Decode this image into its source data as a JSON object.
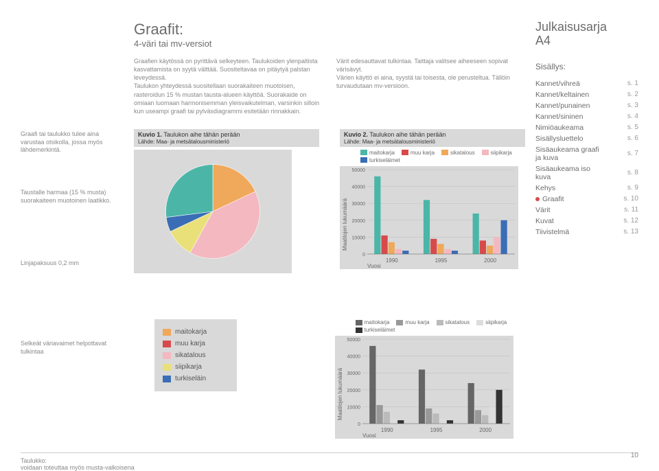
{
  "title": "Graafit:",
  "subtitle": "4-väri tai mv-versiot",
  "paragraphs": {
    "p1": "Graafien käytössä on pyrittävä selkeyteen. Taulukoiden ylenpaltista kasvattamista on syytä välttää. Suositeltavaa on pitäytyä palstan leveydessä.",
    "p2": "Taulukon yhteydessä suositellaan suorakaiteen muotoisen, rasteroidun 15 % mustan tausta-alueen käyttöä. Suorakaide on omiaan luomaan harmonisemman yleisvaikutelman, varsinkin silloin kun useampi graafi tai pylväsdiagrammi esitetään rinnakkain.",
    "p3": "Värit edesauttavat tulkintaa. Taittaja valitsee aiheeseen sopivat värisävyt.",
    "p4": "Värien käyttö ei aina, syystä tai toisesta, ole perusteltua. Tällöin turvaudutaan mv-versioon."
  },
  "left_notes": {
    "n1": "Graafi tai taulukko tulee aina varustaa otsikolla, jossa myös lähdemerkintä.",
    "n2": "Taustalle harmaa (15 % musta) suorakaiteen muotoinen laatikko.",
    "n3": "Linjapaksuus 0,2 mm",
    "n4": "Selkeät väriavaimet helpottavat tulkintaa"
  },
  "kuvio1": {
    "title_prefix": "Kuvio 1.",
    "title": "Taulukon aihe tähän perään",
    "source": "Lähde: Maa- ja metsätalousministeriö",
    "type": "pie",
    "slices": [
      {
        "label": "maitokarja",
        "value": 18,
        "color": "#f0a85a"
      },
      {
        "label": "muu karja",
        "value": 40,
        "color": "#f4b8c0"
      },
      {
        "label": "sikatalous",
        "value": 10,
        "color": "#e9e07a"
      },
      {
        "label": "siipikarja",
        "value": 5,
        "color": "#3a6db5"
      },
      {
        "label": "turkiseläin",
        "value": 27,
        "color": "#4bb6a8"
      }
    ],
    "background_color": "#d9d9d9"
  },
  "kuvio2": {
    "title_prefix": "Kuvio 2.",
    "title": "Taulukon aihe tähän perään",
    "source": "Lähde: Maa- ja metsätalousministeriö",
    "type": "bar",
    "categories": [
      "1990",
      "1995",
      "2000"
    ],
    "series": [
      {
        "name": "maitokarja",
        "color_4c": "#4bb6a8",
        "color_bw": "#666666",
        "values": [
          46000,
          32000,
          24000
        ]
      },
      {
        "name": "muu karja",
        "color_4c": "#d84a4a",
        "color_bw": "#999999",
        "values": [
          11000,
          9000,
          8000
        ]
      },
      {
        "name": "sikatalous",
        "color_4c": "#f0a85a",
        "color_bw": "#bbbbbb",
        "values": [
          7000,
          6000,
          5000
        ]
      },
      {
        "name": "siipikarja",
        "color_4c": "#f4b8c0",
        "color_bw": "#dddddd",
        "values": [
          3000,
          3000,
          10000
        ]
      },
      {
        "name": "turkiseläimet",
        "color_4c": "#3a6db5",
        "color_bw": "#333333",
        "values": [
          2000,
          2000,
          20000
        ]
      }
    ],
    "ylabel": "Maatilojen lukumäärä",
    "xlabel": "Vuosi",
    "ylim": [
      0,
      50000
    ],
    "ytick_step": 10000,
    "background_color": "#d9d9d9"
  },
  "legend_box": {
    "items": [
      {
        "label": "maitokarja",
        "color": "#f0a85a"
      },
      {
        "label": "muu karja",
        "color": "#d84a4a"
      },
      {
        "label": "sikatalous",
        "color": "#f4b8c0"
      },
      {
        "label": "siipikarja",
        "color": "#e9e07a"
      },
      {
        "label": "turkiseläin",
        "color": "#3a6db5"
      }
    ]
  },
  "publication": {
    "line1": "Julkaisusarja",
    "line2": "A4"
  },
  "toc_title": "Sisällys:",
  "toc": [
    {
      "label": "Kannet/vihreä",
      "page": "s. 1",
      "marker": false
    },
    {
      "label": "Kannet/keltainen",
      "page": "s. 2",
      "marker": false
    },
    {
      "label": "Kannet/punainen",
      "page": "s. 3",
      "marker": false
    },
    {
      "label": "Kannet/sininen",
      "page": "s. 4",
      "marker": false
    },
    {
      "label": "Nimiöaukeama",
      "page": "s. 5",
      "marker": false
    },
    {
      "label": "Sisällysluettelo",
      "page": "s. 6",
      "marker": false
    },
    {
      "label": "Sisäaukeama graafi ja kuva",
      "page": "s. 7",
      "marker": false,
      "indent": true
    },
    {
      "label": "Sisäaukeama iso kuva",
      "page": "s. 8",
      "marker": false,
      "indent": true
    },
    {
      "label": "Kehys",
      "page": "s. 9",
      "marker": false
    },
    {
      "label": "Graafit",
      "page": "s. 10",
      "marker": true
    },
    {
      "label": "Värit",
      "page": "s. 11",
      "marker": false
    },
    {
      "label": "Kuvat",
      "page": "s. 12",
      "marker": false
    },
    {
      "label": "Tiivistelmä",
      "page": "s. 13",
      "marker": false
    }
  ],
  "footer": {
    "line1": "Taulukko:",
    "line2": "voidaan toteuttaa myös musta-valkoisena"
  },
  "page_number": "10"
}
